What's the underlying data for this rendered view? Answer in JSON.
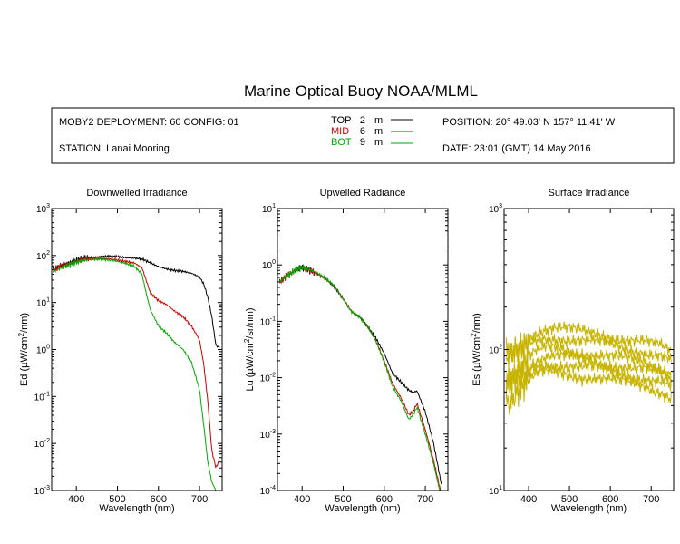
{
  "header": {
    "title": "Marine Optical Buoy NOAA/MLML",
    "deployment": "MOBY2 DEPLOYMENT: 60 CONFIG: 01",
    "station": "STATION: Lanai Mooring",
    "position": "POSITION: 20° 49.03' N   157° 11.41' W",
    "date": "DATE: 23:01 (GMT) 14 May 2016"
  },
  "legend": [
    {
      "name": "TOP",
      "depth": "2",
      "unit": "m",
      "color": "#000000"
    },
    {
      "name": "MID",
      "depth": "6",
      "unit": "m",
      "color": "#cc0000"
    },
    {
      "name": "BOT",
      "depth": "9",
      "unit": "m",
      "color": "#00aa00"
    }
  ],
  "chart_data": [
    {
      "type": "line",
      "title": "Downwelled Irradiance",
      "xlabel": "Wavelength (nm)",
      "ylabel_main": "Ed  (µW/cm",
      "ylabel_sup": "2",
      "ylabel_tail": "/nm)",
      "xlim": [
        340,
        755
      ],
      "ylim": [
        0.001,
        1000
      ],
      "yscale": "log",
      "x_ticks": [
        400,
        500,
        600,
        700
      ],
      "x_tick_labels": [
        "400",
        "500",
        "600",
        "700"
      ],
      "y_ticks": [
        0.001,
        0.01,
        0.1,
        1,
        10,
        100,
        1000
      ],
      "y_tick_labels": [
        {
          "base": "10",
          "exp": "-3"
        },
        {
          "base": "10",
          "exp": "-2"
        },
        {
          "base": "10",
          "exp": "-1"
        },
        {
          "base": "10",
          "exp": "0"
        },
        {
          "base": "10",
          "exp": "1"
        },
        {
          "base": "10",
          "exp": "2"
        },
        {
          "base": "10",
          "exp": "3"
        }
      ],
      "series": [
        {
          "name": "TOP",
          "color": "#000000",
          "x": [
            345,
            360,
            380,
            400,
            420,
            440,
            460,
            480,
            500,
            520,
            540,
            560,
            580,
            600,
            620,
            640,
            660,
            680,
            700,
            710,
            720,
            730,
            740,
            750
          ],
          "y": [
            50,
            62,
            70,
            80,
            90,
            92,
            95,
            97,
            95,
            90,
            88,
            85,
            70,
            58,
            52,
            48,
            46,
            42,
            35,
            25,
            13,
            5,
            1.2,
            1.1
          ]
        },
        {
          "name": "MID",
          "color": "#cc0000",
          "x": [
            345,
            360,
            380,
            400,
            420,
            440,
            460,
            480,
            500,
            520,
            540,
            560,
            570,
            580,
            600,
            620,
            640,
            660,
            680,
            700,
            710,
            720,
            730,
            740,
            750
          ],
          "y": [
            48,
            58,
            66,
            75,
            85,
            87,
            88,
            85,
            80,
            75,
            70,
            55,
            30,
            16,
            11,
            9,
            6.5,
            5,
            3.2,
            1.6,
            0.5,
            0.08,
            0.007,
            0.003,
            0.005
          ]
        },
        {
          "name": "BOT",
          "color": "#00aa00",
          "x": [
            345,
            360,
            380,
            400,
            420,
            440,
            460,
            480,
            500,
            520,
            540,
            560,
            570,
            580,
            600,
            620,
            640,
            660,
            680,
            700,
            710,
            720,
            730,
            740
          ],
          "y": [
            46,
            54,
            62,
            72,
            80,
            82,
            84,
            80,
            75,
            68,
            60,
            40,
            16,
            7,
            3.2,
            2.2,
            1.4,
            1.0,
            0.55,
            0.14,
            0.025,
            0.004,
            0.0015,
            0.001
          ]
        }
      ]
    },
    {
      "type": "line",
      "title": "Upwelled Radiance",
      "xlabel": "Wavelength (nm)",
      "ylabel_main": "Lu  (µW/cm",
      "ylabel_sup": "2",
      "ylabel_tail": "/sr/nm)",
      "xlim": [
        340,
        755
      ],
      "ylim": [
        0.0001,
        10
      ],
      "yscale": "log",
      "x_ticks": [
        400,
        500,
        600,
        700
      ],
      "x_tick_labels": [
        "400",
        "500",
        "600",
        "700"
      ],
      "y_ticks": [
        0.0001,
        0.001,
        0.01,
        0.1,
        1,
        10
      ],
      "y_tick_labels": [
        {
          "base": "10",
          "exp": "-4"
        },
        {
          "base": "10",
          "exp": "-3"
        },
        {
          "base": "10",
          "exp": "-2"
        },
        {
          "base": "10",
          "exp": "-1"
        },
        {
          "base": "10",
          "exp": "0"
        },
        {
          "base": "10",
          "exp": "1"
        }
      ],
      "series": [
        {
          "name": "TOP",
          "color": "#000000",
          "x": [
            345,
            360,
            380,
            400,
            420,
            440,
            460,
            480,
            500,
            520,
            540,
            560,
            580,
            600,
            620,
            640,
            660,
            670,
            680,
            700,
            720,
            740
          ],
          "y": [
            0.5,
            0.62,
            0.78,
            0.9,
            0.8,
            0.68,
            0.55,
            0.4,
            0.25,
            0.15,
            0.12,
            0.08,
            0.05,
            0.027,
            0.012,
            0.0085,
            0.006,
            0.0055,
            0.0058,
            0.0025,
            0.0007,
            0.00012
          ]
        },
        {
          "name": "MID",
          "color": "#cc0000",
          "x": [
            345,
            360,
            380,
            400,
            420,
            440,
            460,
            480,
            500,
            520,
            540,
            560,
            580,
            600,
            620,
            640,
            660,
            670,
            680,
            700,
            720,
            740
          ],
          "y": [
            0.5,
            0.62,
            0.78,
            0.9,
            0.8,
            0.68,
            0.55,
            0.4,
            0.25,
            0.15,
            0.12,
            0.08,
            0.045,
            0.02,
            0.008,
            0.0045,
            0.0022,
            0.0025,
            0.0035,
            0.0012,
            0.00035,
            8e-05
          ]
        },
        {
          "name": "BOT",
          "color": "#00aa00",
          "x": [
            345,
            360,
            380,
            400,
            420,
            440,
            460,
            480,
            500,
            520,
            540,
            560,
            580,
            600,
            620,
            640,
            660,
            670,
            680,
            700,
            720,
            740
          ],
          "y": [
            0.5,
            0.62,
            0.78,
            0.92,
            0.82,
            0.7,
            0.56,
            0.41,
            0.25,
            0.15,
            0.12,
            0.08,
            0.044,
            0.019,
            0.007,
            0.004,
            0.0018,
            0.0022,
            0.003,
            0.001,
            0.0003,
            7e-05
          ]
        }
      ]
    },
    {
      "type": "line",
      "title": "Surface Irradiance",
      "xlabel": "Wavelength (nm)",
      "ylabel_main": "Es  (µW/cm",
      "ylabel_sup": "2",
      "ylabel_tail": "/nm)",
      "xlim": [
        340,
        755
      ],
      "ylim": [
        10,
        1000
      ],
      "yscale": "log",
      "x_ticks": [
        400,
        500,
        600,
        700
      ],
      "x_tick_labels": [
        "400",
        "500",
        "600",
        "700"
      ],
      "y_ticks": [
        10,
        100,
        1000
      ],
      "y_tick_labels": [
        {
          "base": "10",
          "exp": "1"
        },
        {
          "base": "10",
          "exp": "2"
        },
        {
          "base": "10",
          "exp": "3"
        }
      ],
      "line_color": "#c8b400",
      "base_x": [
        345,
        360,
        380,
        400,
        420,
        440,
        460,
        480,
        500,
        520,
        540,
        560,
        580,
        600,
        620,
        640,
        660,
        680,
        700,
        720,
        740,
        750
      ],
      "base_y": [
        1.0,
        1.05,
        1.15,
        1.3,
        1.42,
        1.48,
        1.5,
        1.48,
        1.45,
        1.42,
        1.4,
        1.38,
        1.35,
        1.32,
        1.28,
        1.25,
        1.22,
        1.2,
        1.15,
        1.12,
        1.05,
        1.0
      ],
      "series": [
        {
          "name": "",
          "scale": 95
        },
        {
          "name": "",
          "scale": 82
        },
        {
          "name": "",
          "scale": 68
        },
        {
          "name": "",
          "scale": 60
        },
        {
          "name": "",
          "scale": 53
        },
        {
          "name": "",
          "scale": 46
        }
      ]
    }
  ]
}
